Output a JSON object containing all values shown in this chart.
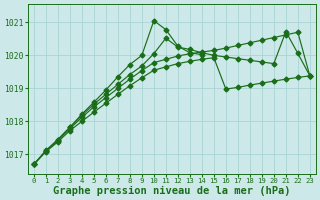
{
  "bg_color": "#cce8e8",
  "grid_color": "#aad4d4",
  "line_color": "#1a6e1a",
  "xlabel": "Graphe pression niveau de la mer (hPa)",
  "xlabel_fontsize": 7.5,
  "ytick_labels": [
    1017,
    1018,
    1019,
    1020,
    1021
  ],
  "xtick_labels": [
    0,
    1,
    2,
    3,
    4,
    5,
    6,
    7,
    8,
    9,
    10,
    11,
    12,
    13,
    14,
    15,
    16,
    17,
    18,
    19,
    20,
    21,
    22,
    23
  ],
  "ylim": [
    1016.4,
    1021.55
  ],
  "xlim": [
    -0.5,
    23.5
  ],
  "series": [
    {
      "x": [
        0,
        1,
        2,
        3,
        4,
        5,
        6,
        7,
        8,
        9,
        10,
        11,
        12,
        13,
        14
      ],
      "y": [
        1016.7,
        1017.1,
        1017.45,
        1017.82,
        1018.22,
        1018.58,
        1018.95,
        1019.35,
        1019.72,
        1020.0,
        1021.05,
        1020.78,
        1020.28,
        1020.08,
        1020.02
      ]
    },
    {
      "x": [
        0,
        1,
        2,
        3,
        4,
        5,
        6,
        7,
        8,
        9,
        10,
        11,
        12,
        13,
        14,
        15,
        16,
        17,
        18,
        19,
        20,
        21,
        22,
        23
      ],
      "y": [
        1016.7,
        1017.12,
        1017.45,
        1017.82,
        1018.18,
        1018.52,
        1018.82,
        1019.12,
        1019.42,
        1019.68,
        1020.05,
        1020.52,
        1020.25,
        1020.18,
        1020.08,
        1020.0,
        1019.95,
        1019.9,
        1019.85,
        1019.8,
        1019.75,
        1020.72,
        1020.06,
        1019.38
      ]
    },
    {
      "x": [
        0,
        1,
        2,
        3,
        4,
        5,
        6,
        7,
        8,
        9,
        10,
        11,
        12,
        13,
        14,
        15,
        16,
        17,
        18,
        19,
        20,
        21,
        22,
        23
      ],
      "y": [
        1016.7,
        1017.1,
        1017.42,
        1017.78,
        1018.12,
        1018.44,
        1018.72,
        1019.0,
        1019.28,
        1019.54,
        1019.78,
        1019.88,
        1019.98,
        1020.05,
        1020.1,
        1020.15,
        1020.22,
        1020.3,
        1020.38,
        1020.46,
        1020.54,
        1020.62,
        1020.7,
        1019.38
      ]
    },
    {
      "x": [
        0,
        1,
        2,
        3,
        4,
        5,
        6,
        7,
        8,
        9,
        10,
        11,
        12,
        13,
        14,
        15,
        16,
        17,
        18,
        19,
        20,
        21,
        22,
        23
      ],
      "y": [
        1016.7,
        1017.08,
        1017.38,
        1017.72,
        1018.0,
        1018.28,
        1018.55,
        1018.82,
        1019.08,
        1019.32,
        1019.55,
        1019.65,
        1019.75,
        1019.82,
        1019.88,
        1019.93,
        1018.98,
        1019.03,
        1019.1,
        1019.16,
        1019.22,
        1019.28,
        1019.33,
        1019.38
      ]
    }
  ]
}
